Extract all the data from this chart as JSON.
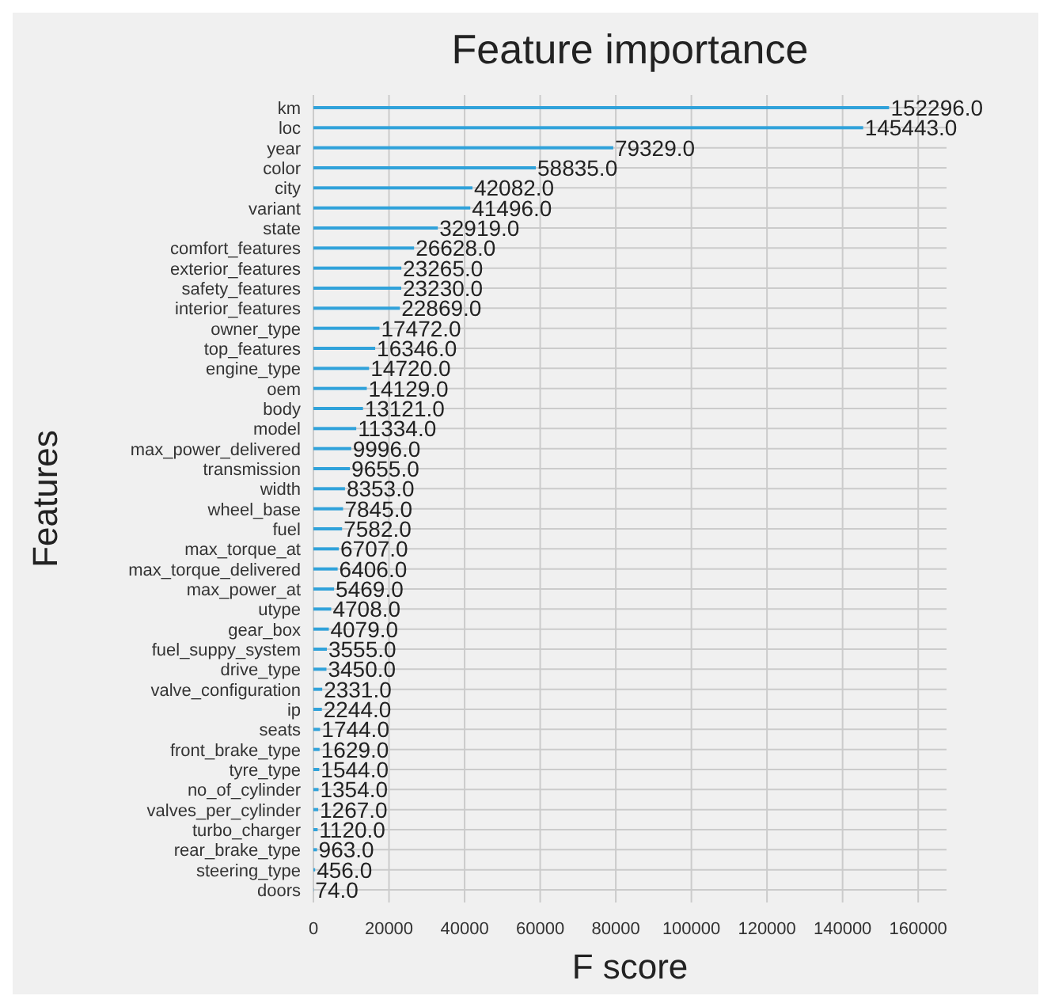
{
  "chart_data": {
    "type": "bar",
    "orientation": "horizontal",
    "title": "Feature importance",
    "xlabel": "F score",
    "ylabel": "Features",
    "categories": [
      "km",
      "loc",
      "year",
      "color",
      "city",
      "variant",
      "state",
      "comfort_features",
      "exterior_features",
      "safety_features",
      "interior_features",
      "owner_type",
      "top_features",
      "engine_type",
      "oem",
      "body",
      "model",
      "max_power_delivered",
      "transmission",
      "width",
      "wheel_base",
      "fuel",
      "max_torque_at",
      "max_torque_delivered",
      "max_power_at",
      "utype",
      "gear_box",
      "fuel_suppy_system",
      "drive_type",
      "valve_configuration",
      "ip",
      "seats",
      "front_brake_type",
      "tyre_type",
      "no_of_cylinder",
      "valves_per_cylinder",
      "turbo_charger",
      "rear_brake_type",
      "steering_type",
      "doors"
    ],
    "values": [
      152296,
      145443,
      79329,
      58835,
      42082,
      41496,
      32919,
      26628,
      23265,
      23230,
      22869,
      17472,
      16346,
      14720,
      14129,
      13121,
      11334,
      9996,
      9655,
      8353,
      7845,
      7582,
      6707,
      6406,
      5469,
      4708,
      4079,
      3555,
      3450,
      2331,
      2244,
      1744,
      1629,
      1544,
      1354,
      1267,
      1120,
      963,
      456,
      74
    ],
    "value_labels": [
      "152296.0",
      "145443.0",
      "79329.0",
      "58835.0",
      "42082.0",
      "41496.0",
      "32919.0",
      "26628.0",
      "23265.0",
      "23230.0",
      "22869.0",
      "17472.0",
      "16346.0",
      "14720.0",
      "14129.0",
      "13121.0",
      "11334.0",
      "9996.0",
      "9655.0",
      "8353.0",
      "7845.0",
      "7582.0",
      "6707.0",
      "6406.0",
      "5469.0",
      "4708.0",
      "4079.0",
      "3555.0",
      "3450.0",
      "2331.0",
      "2244.0",
      "1744.0",
      "1629.0",
      "1544.0",
      "1354.0",
      "1267.0",
      "1120.0",
      "963.0",
      "456.0",
      "74.0"
    ],
    "color": "#30a2da",
    "xlim": [
      0,
      167500
    ],
    "xticks": [
      0,
      20000,
      40000,
      60000,
      80000,
      100000,
      120000,
      140000,
      160000
    ],
    "grid": true
  }
}
